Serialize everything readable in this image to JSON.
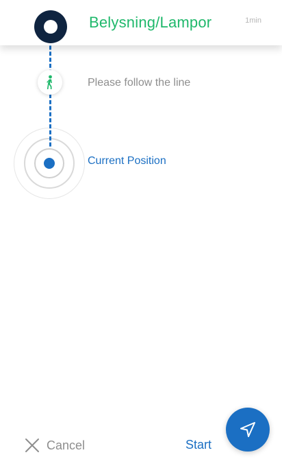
{
  "header": {
    "destination_title": "Belysning/Lampor",
    "duration": "1min"
  },
  "steps": {
    "walk_instruction": "Please follow the line",
    "current_position_label": "Current Position"
  },
  "footer": {
    "cancel_label": "Cancel",
    "start_label": "Start"
  },
  "icons": {
    "destination": "destination-marker-icon",
    "walk": "walking-person-icon",
    "position": "current-position-icon",
    "cancel": "close-icon",
    "navigate": "navigation-arrow-icon"
  },
  "colors": {
    "title_green": "#1fb86b",
    "accent_blue": "#1b6fc3",
    "marker_navy": "#0f2440",
    "muted_gray": "#8e8e8e"
  }
}
